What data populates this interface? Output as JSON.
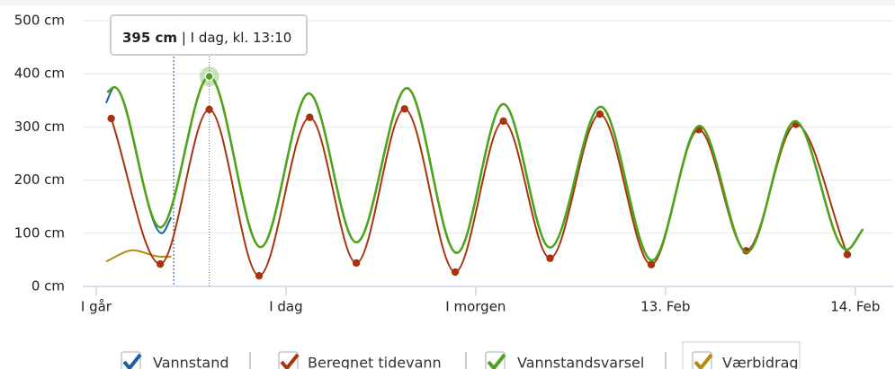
{
  "chart_data": {
    "type": "line",
    "xticks": [
      {
        "value": 0,
        "label": "I går"
      },
      {
        "value": 24,
        "label": "I dag"
      },
      {
        "value": 48,
        "label": "I morgen"
      },
      {
        "value": 72,
        "label": "13. Feb"
      },
      {
        "value": 96,
        "label": "14. Feb"
      }
    ],
    "xlim": [
      -1.7,
      100.8
    ],
    "ylim": [
      0,
      500
    ],
    "yticks": [
      {
        "value": 0,
        "label": "0 cm"
      },
      {
        "value": 100,
        "label": "100 cm"
      },
      {
        "value": 200,
        "label": "200 cm"
      },
      {
        "value": 300,
        "label": "300 cm"
      },
      {
        "value": 400,
        "label": "400 cm"
      },
      {
        "value": 500,
        "label": "500 cm"
      }
    ],
    "grid": true,
    "now_x": 9.8,
    "series": [
      {
        "name": "Vannstand",
        "color": "#1f5f9e",
        "markers": false,
        "x": [
          1.25,
          2.3,
          8.3,
          9.5
        ],
        "values": [
          345,
          375,
          100,
          130
        ]
      },
      {
        "name": "Beregnet tidevann",
        "color": "#a8340f",
        "markers": true,
        "x": [
          1.9,
          8.1,
          14.3,
          20.6,
          27.0,
          32.9,
          39.0,
          45.4,
          51.5,
          57.4,
          63.7,
          70.2,
          76.2,
          82.2,
          88.5,
          95.0
        ],
        "values": [
          316,
          42,
          333,
          20,
          318,
          44,
          334,
          27,
          311,
          53,
          324,
          41,
          295,
          67,
          305,
          60
        ]
      },
      {
        "name": "Vannstandsvarsel",
        "color": "#4ea31b",
        "markers": false,
        "x": [
          1.4,
          2.3,
          8.1,
          14.3,
          20.8,
          26.9,
          32.9,
          39.3,
          45.6,
          51.5,
          57.4,
          63.8,
          70.3,
          76.3,
          82.3,
          88.4,
          94.9,
          97.0
        ],
        "values": [
          365,
          375,
          111,
          395,
          74,
          363,
          83,
          373,
          63,
          343,
          73,
          338,
          49,
          302,
          64,
          311,
          69,
          108
        ]
      },
      {
        "name": "Værbidrag",
        "color": "#b38a12",
        "markers": false,
        "x": [
          1.25,
          4.7,
          8.1,
          9.5
        ],
        "values": [
          47,
          68,
          56,
          56
        ]
      }
    ],
    "tooltip": {
      "x": 14.3,
      "value": 395,
      "value_label": "395 cm",
      "text": " | I dag, kl. 13:10"
    }
  }
}
